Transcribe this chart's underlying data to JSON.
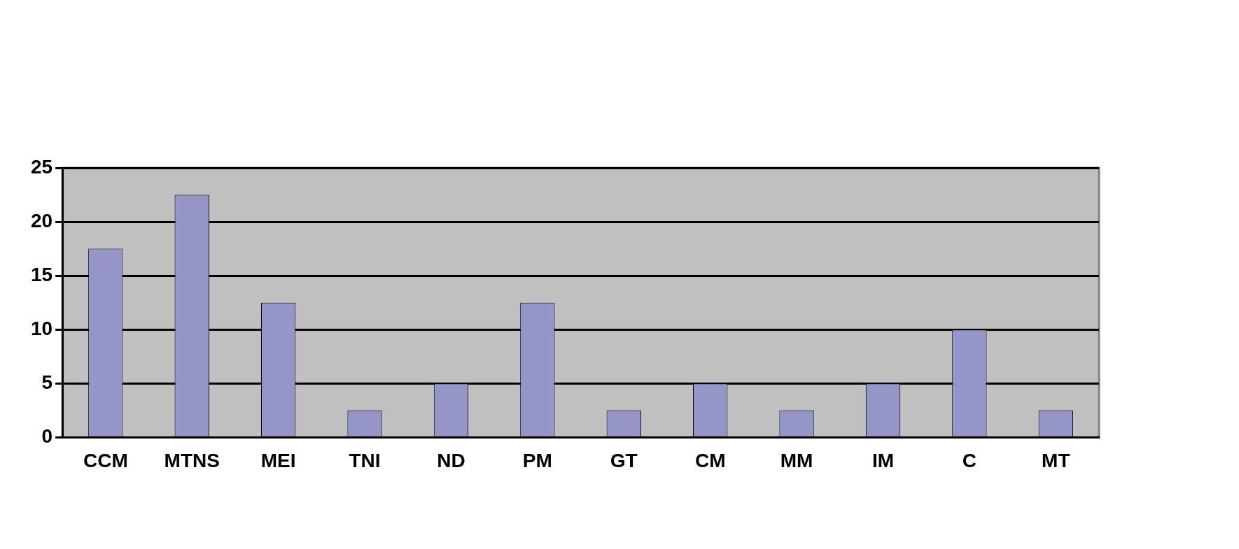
{
  "chart_data": {
    "type": "bar",
    "categories": [
      "CCM",
      "MTNS",
      "MEI",
      "TNI",
      "ND",
      "PM",
      "GT",
      "CM",
      "MM",
      "IM",
      "C",
      "MT"
    ],
    "values": [
      17.5,
      22.5,
      12.5,
      2.5,
      5,
      12.5,
      2.5,
      5,
      2.5,
      5,
      10,
      2.5
    ],
    "color": "#9496c8",
    "ylim": [
      0,
      25
    ],
    "yticks": [
      0,
      5,
      10,
      15,
      20,
      25
    ],
    "grid": "y",
    "legend": false
  }
}
